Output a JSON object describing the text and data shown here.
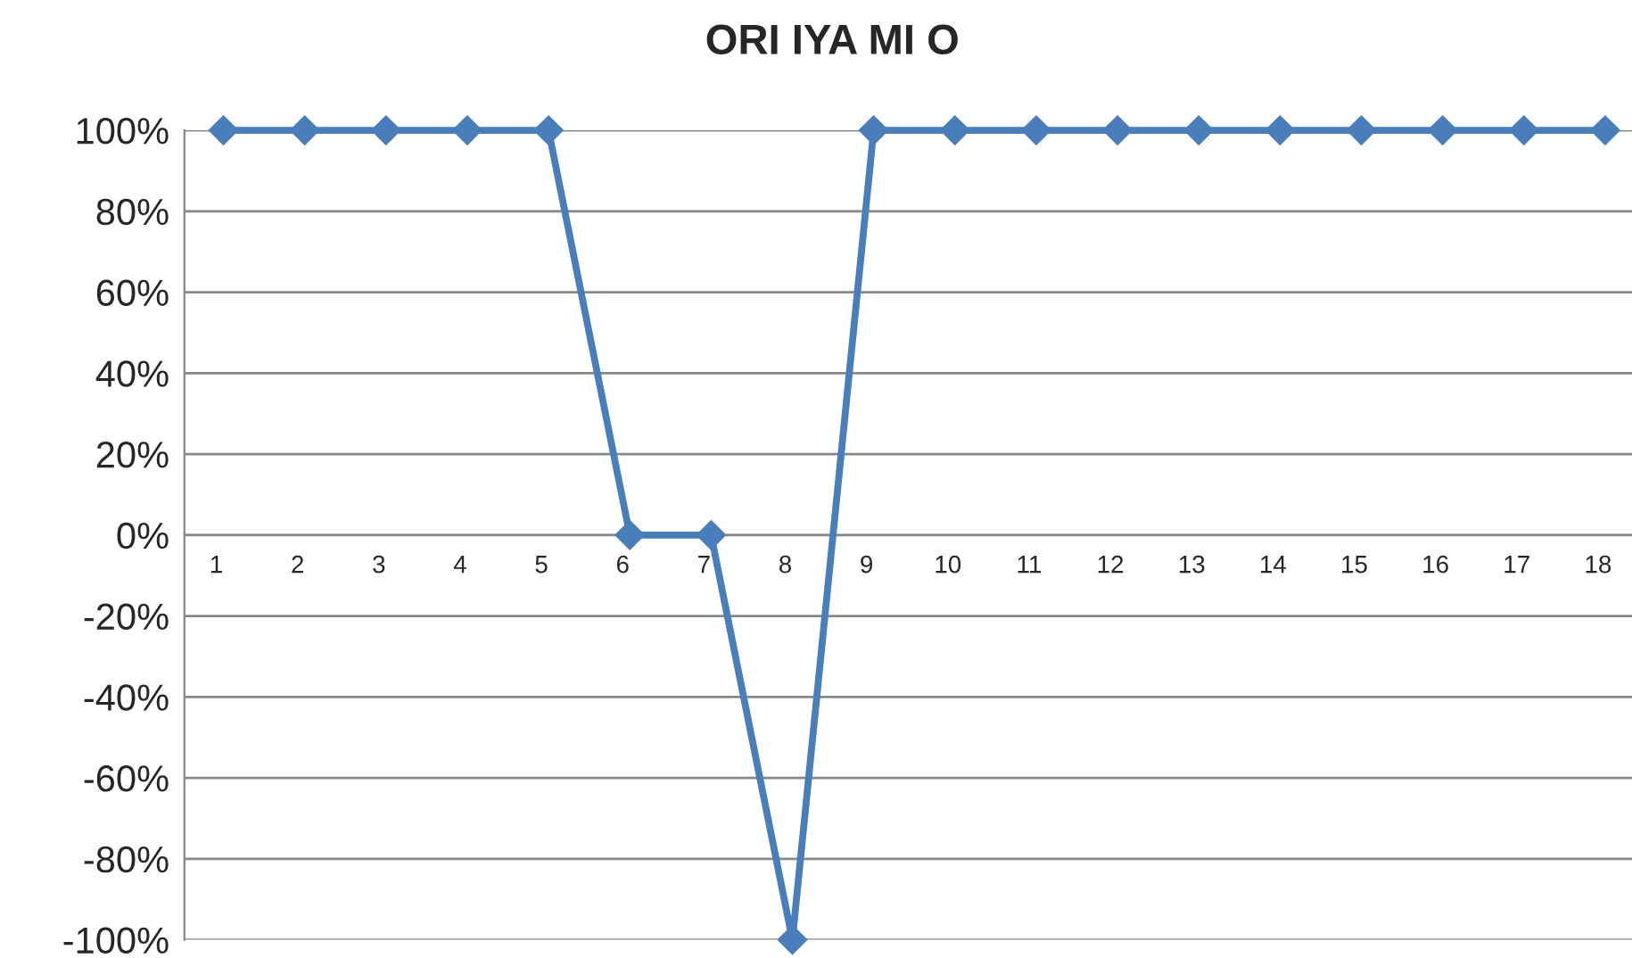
{
  "chart_data": {
    "type": "line",
    "title": "ORI IYA MI O",
    "categories": [
      "1",
      "2",
      "3",
      "4",
      "5",
      "6",
      "7",
      "8",
      "9",
      "10",
      "11",
      "12",
      "13",
      "14",
      "15",
      "16",
      "17",
      "18"
    ],
    "series": [
      {
        "color": "#4a7ebb",
        "values": [
          100,
          100,
          100,
          100,
          100,
          0,
          0,
          -100,
          100,
          100,
          100,
          100,
          100,
          100,
          100,
          100,
          100,
          100
        ]
      }
    ],
    "ylim": [
      -100,
      100
    ],
    "yticks": [
      {
        "value": -100,
        "label": "-100%"
      },
      {
        "value": -80,
        "label": "-80%"
      },
      {
        "value": -60,
        "label": "-60%"
      },
      {
        "value": -40,
        "label": "-40%"
      },
      {
        "value": -20,
        "label": "-20%"
      },
      {
        "value": 0,
        "label": "0%"
      },
      {
        "value": 20,
        "label": "20%"
      },
      {
        "value": 40,
        "label": "40%"
      },
      {
        "value": 60,
        "label": "60%"
      },
      {
        "value": 80,
        "label": "80%"
      },
      {
        "value": 100,
        "label": "100%"
      }
    ],
    "grid": "y",
    "legend": false,
    "marker": "diamond",
    "line_style": "solid"
  }
}
